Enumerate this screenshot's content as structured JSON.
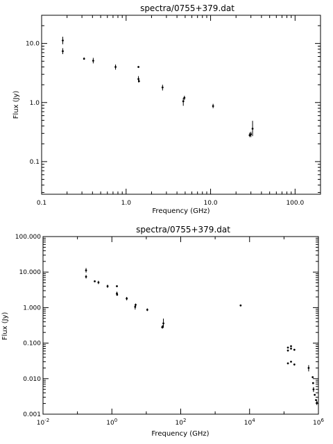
{
  "chart_data": [
    {
      "type": "scatter",
      "title": "spectra/0755+379.dat",
      "xlabel": "Frequency (GHz)",
      "ylabel": "Flux (Jy)",
      "xscale": "log",
      "yscale": "log",
      "xlim": [
        0.1,
        200
      ],
      "ylim": [
        0.028,
        30
      ],
      "grid": false,
      "xtick_values": [
        0.1,
        1,
        10,
        100
      ],
      "xtick_labels": [
        "0.1",
        "1.0",
        "10.0",
        "100.0"
      ],
      "ytick_values": [
        0.1,
        1,
        10
      ],
      "ytick_labels": [
        "0.1",
        "1.0",
        "10.0"
      ],
      "points": [
        {
          "x": 0.178,
          "y": 11.2,
          "lo": 9.7,
          "hi": 13.0
        },
        {
          "x": 0.178,
          "y": 7.4,
          "lo": 6.6,
          "hi": 8.3
        },
        {
          "x": 0.318,
          "y": 5.5,
          "lo": 5.3,
          "hi": 5.8
        },
        {
          "x": 0.408,
          "y": 5.1,
          "lo": 4.6,
          "hi": 5.7
        },
        {
          "x": 0.75,
          "y": 4.0,
          "lo": 3.6,
          "hi": 4.4
        },
        {
          "x": 1.4,
          "y": 4.0,
          "lo": 3.9,
          "hi": 4.1
        },
        {
          "x": 1.4,
          "y": 2.5,
          "lo": 2.2,
          "hi": 2.8
        },
        {
          "x": 1.42,
          "y": 2.3,
          "lo": 2.2,
          "hi": 2.4
        },
        {
          "x": 2.7,
          "y": 1.8,
          "lo": 1.6,
          "hi": 2.0
        },
        {
          "x": 4.75,
          "y": 1.05,
          "lo": 0.88,
          "hi": 1.2
        },
        {
          "x": 4.9,
          "y": 1.2,
          "lo": 1.1,
          "hi": 1.3
        },
        {
          "x": 10.7,
          "y": 0.87,
          "lo": 0.8,
          "hi": 0.95
        },
        {
          "x": 29.0,
          "y": 0.28,
          "lo": 0.26,
          "hi": 0.31
        },
        {
          "x": 30.0,
          "y": 0.29,
          "lo": 0.26,
          "hi": 0.32
        },
        {
          "x": 31.4,
          "y": 0.36,
          "lo": 0.27,
          "hi": 0.49
        }
      ]
    },
    {
      "type": "scatter",
      "title": "spectra/0755+379.dat",
      "xlabel": "Frequency (GHz)",
      "ylabel": "Flux (Jy)",
      "xscale": "log",
      "yscale": "log",
      "xlim": [
        0.01,
        1000000
      ],
      "ylim": [
        0.001,
        100
      ],
      "grid": false,
      "xtick_values": [
        0.01,
        1,
        100,
        10000,
        1000000
      ],
      "xtick_labels": [
        "10^-2",
        "10^0",
        "10^2",
        "10^4",
        "10^6"
      ],
      "ytick_values": [
        0.001,
        0.01,
        0.1,
        1,
        10,
        100
      ],
      "ytick_labels": [
        "0.001",
        "0.010",
        "0.100",
        "1.000",
        "10.000",
        "100.000"
      ],
      "points": [
        {
          "x": 0.178,
          "y": 11.2,
          "lo": 9.7,
          "hi": 13.0
        },
        {
          "x": 0.178,
          "y": 7.4,
          "lo": 6.6,
          "hi": 8.3
        },
        {
          "x": 0.318,
          "y": 5.5,
          "lo": 5.3,
          "hi": 5.8
        },
        {
          "x": 0.408,
          "y": 5.1,
          "lo": 4.6,
          "hi": 5.7
        },
        {
          "x": 0.75,
          "y": 4.0,
          "lo": 3.6,
          "hi": 4.4
        },
        {
          "x": 1.4,
          "y": 4.0,
          "lo": 3.9,
          "hi": 4.1
        },
        {
          "x": 1.4,
          "y": 2.5,
          "lo": 2.2,
          "hi": 2.8
        },
        {
          "x": 1.42,
          "y": 2.3,
          "lo": 2.2,
          "hi": 2.4
        },
        {
          "x": 2.7,
          "y": 1.8,
          "lo": 1.6,
          "hi": 2.0
        },
        {
          "x": 4.75,
          "y": 1.05,
          "lo": 0.88,
          "hi": 1.2
        },
        {
          "x": 4.9,
          "y": 1.2,
          "lo": 1.1,
          "hi": 1.3
        },
        {
          "x": 10.7,
          "y": 0.87,
          "lo": 0.8,
          "hi": 0.95
        },
        {
          "x": 29.0,
          "y": 0.28,
          "lo": 0.26,
          "hi": 0.31
        },
        {
          "x": 30.0,
          "y": 0.29,
          "lo": 0.26,
          "hi": 0.32
        },
        {
          "x": 31.4,
          "y": 0.36,
          "lo": 0.27,
          "hi": 0.49
        },
        {
          "x": 5500,
          "y": 1.15
        },
        {
          "x": 130000,
          "y": 0.075
        },
        {
          "x": 130000,
          "y": 0.062
        },
        {
          "x": 130000,
          "y": 0.027
        },
        {
          "x": 160000,
          "y": 0.082
        },
        {
          "x": 160000,
          "y": 0.07
        },
        {
          "x": 160000,
          "y": 0.03
        },
        {
          "x": 200000,
          "y": 0.065
        },
        {
          "x": 200000,
          "y": 0.025
        },
        {
          "x": 520000,
          "y": 0.02,
          "lo": 0.016,
          "hi": 0.024
        },
        {
          "x": 680000,
          "y": 0.011
        },
        {
          "x": 700000,
          "y": 0.0075
        },
        {
          "x": 720000,
          "y": 0.005,
          "lo": 0.0042,
          "hi": 0.0058
        },
        {
          "x": 780000,
          "y": 0.0035
        },
        {
          "x": 850000,
          "y": 0.0025
        },
        {
          "x": 900000,
          "y": 0.0021,
          "lo": 0.0018,
          "hi": 0.0024
        }
      ]
    }
  ]
}
